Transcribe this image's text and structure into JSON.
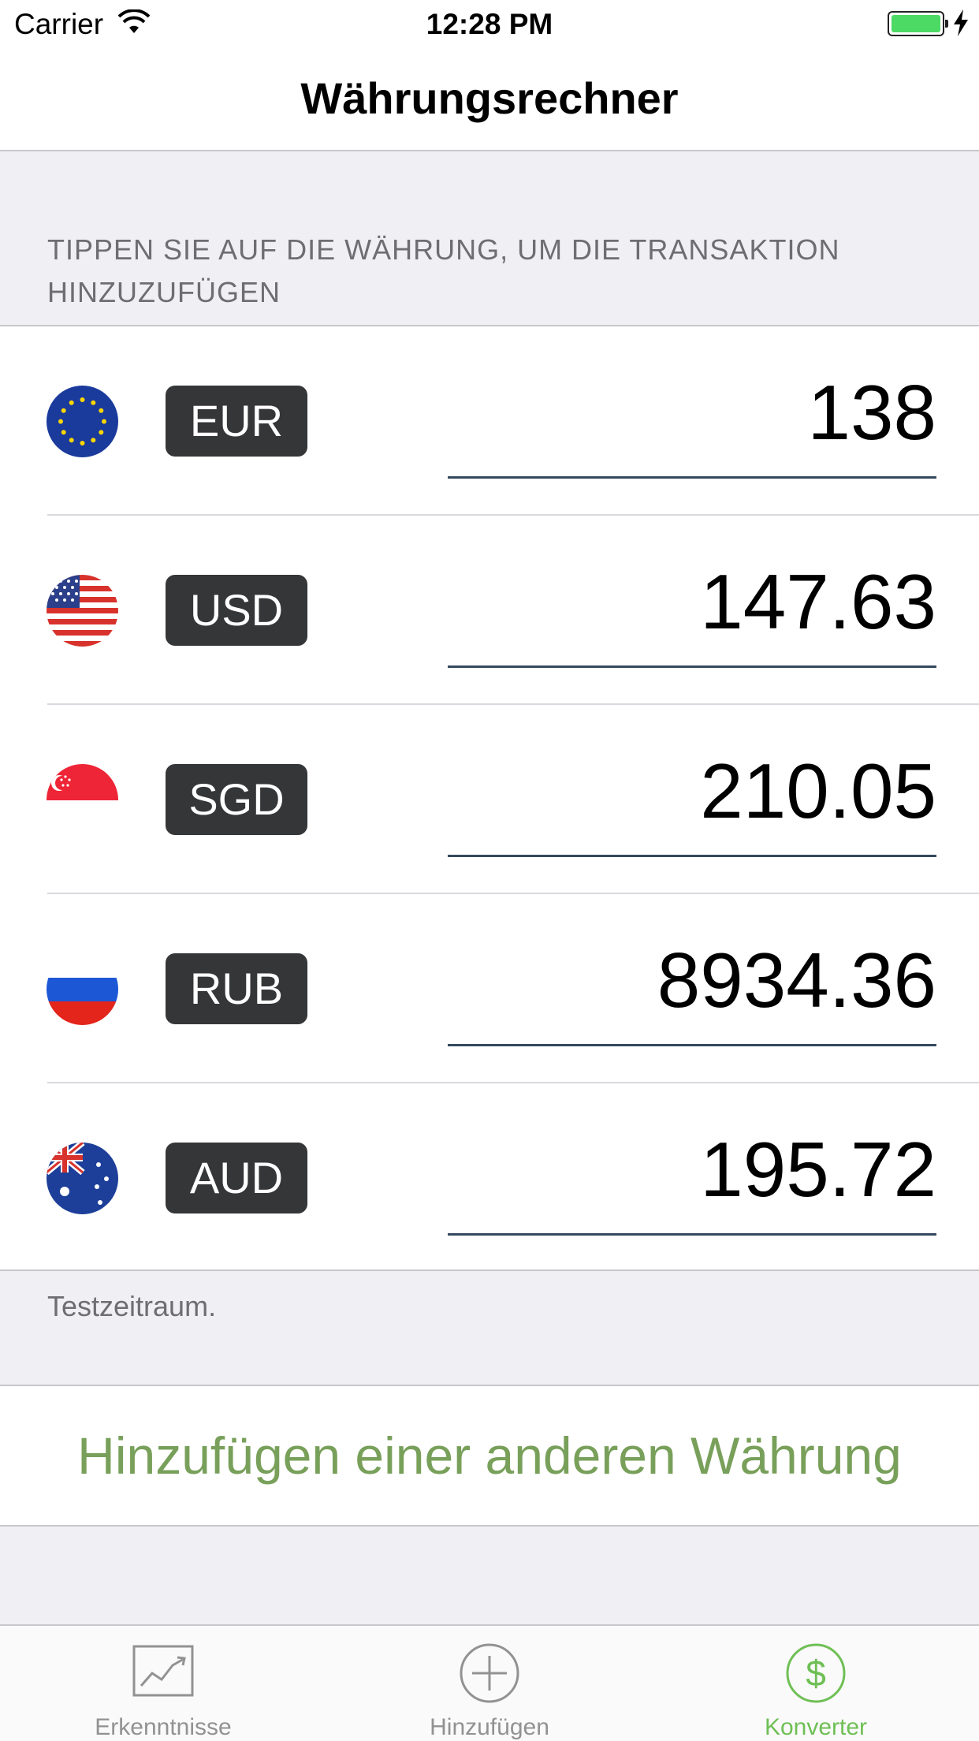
{
  "status_bar": {
    "carrier": "Carrier",
    "time": "12:28 PM",
    "battery_color": "#4cd964"
  },
  "nav": {
    "title": "Währungsrechner"
  },
  "section_header": "TIPPEN SIE AUF DIE WÄHRUNG, UM DIE TRANSAKTION HINZUZUFÜGEN",
  "currencies": [
    {
      "code": "EUR",
      "amount": "138",
      "flag": "eu-flag-icon"
    },
    {
      "code": "USD",
      "amount": "147.63",
      "flag": "us-flag-icon"
    },
    {
      "code": "SGD",
      "amount": "210.05",
      "flag": "sg-flag-icon"
    },
    {
      "code": "RUB",
      "amount": "8934.36",
      "flag": "ru-flag-icon"
    },
    {
      "code": "AUD",
      "amount": "195.72",
      "flag": "au-flag-icon"
    }
  ],
  "footer_note": "Testzeitraum.",
  "add_currency_label": "Hinzufügen einer anderen Währung",
  "accent_color": "#78a05a",
  "tab_bar": {
    "active_color": "#6fbf55",
    "tabs": [
      {
        "label": "Erkenntnisse",
        "icon": "chart-icon",
        "active": false
      },
      {
        "label": "Hinzufügen",
        "icon": "plus-circle-icon",
        "active": false
      },
      {
        "label": "Konverter",
        "icon": "dollar-circle-icon",
        "active": true
      }
    ]
  }
}
